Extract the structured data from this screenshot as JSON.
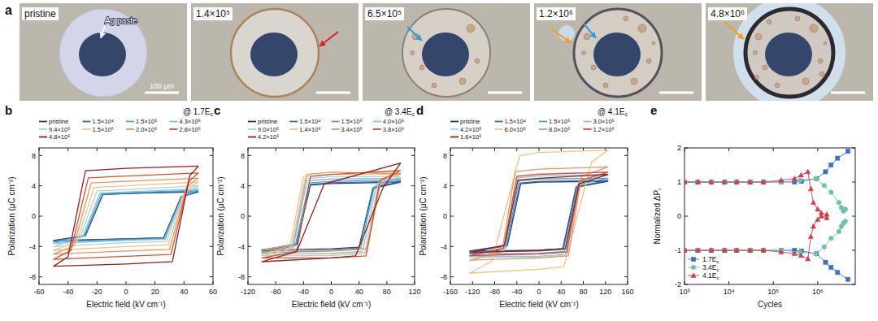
{
  "panel_a": {
    "label": "a",
    "images": [
      "pristine",
      "1.4×10⁵",
      "6.5×10⁵",
      "1.2×10⁶",
      "4.8×10⁶"
    ],
    "annotation": "Ag paste",
    "scale_bar": "100 μm"
  },
  "chart_data": [
    {
      "type": "line",
      "panel_label": "b",
      "annotation": "@ 1.7Ec",
      "x_label": "Electric field (kV cm⁻¹)",
      "y_label": "Polarization (μC cm⁻²)",
      "xlim": [
        -60,
        60
      ],
      "ylim": [
        -9,
        9
      ],
      "xticks": [
        -60,
        -40,
        -20,
        0,
        20,
        40,
        60
      ],
      "yticks": [
        -8,
        -4,
        0,
        4,
        8
      ],
      "legend": "top",
      "series": [
        {
          "name": "pristine",
          "color": "#1b3d7a",
          "x": [
            50,
            0,
            -16,
            -28,
            -50,
            0,
            26,
            38,
            50
          ],
          "values": [
            3.2,
            3.0,
            2.85,
            -2.55,
            -3.2,
            -3.0,
            -2.85,
            2.55,
            3.2
          ]
        },
        {
          "name": "1.5×10⁴",
          "color": "#2f6db5",
          "x": [
            50,
            0,
            -16,
            -28,
            -50,
            0,
            26,
            38,
            50
          ],
          "values": [
            3.3,
            3.0,
            2.85,
            -2.55,
            -3.3,
            -3.0,
            -2.85,
            2.55,
            3.3
          ]
        },
        {
          "name": "1.5×10⁵",
          "color": "#4fa3c7",
          "x": [
            50,
            0,
            -17,
            -29,
            -50,
            0,
            27,
            39,
            50
          ],
          "values": [
            3.4,
            3.1,
            2.95,
            -2.64,
            -3.4,
            -3.1,
            -2.95,
            2.64,
            3.4
          ]
        },
        {
          "name": "4.3×10⁵",
          "color": "#86c5d8",
          "x": [
            50,
            0,
            -18,
            -30,
            -50,
            0,
            27,
            39,
            50
          ],
          "values": [
            3.6,
            3.2,
            3.04,
            -2.72,
            -3.6,
            -3.2,
            -3.04,
            2.72,
            3.6
          ]
        },
        {
          "name": "9.4×10⁵",
          "color": "#a9d4de",
          "x": [
            50,
            0,
            -20,
            -32,
            -50,
            0,
            28,
            40,
            50
          ],
          "values": [
            4.0,
            3.5,
            3.33,
            -2.98,
            -4.0,
            -3.5,
            -3.33,
            2.98,
            4.0
          ]
        },
        {
          "name": "1.5×10⁶",
          "color": "#f5c27f",
          "x": [
            50,
            0,
            -22,
            -34,
            -50,
            0,
            29,
            41,
            50
          ],
          "values": [
            4.5,
            4.0,
            3.8,
            -3.4,
            -4.5,
            -4.0,
            -3.8,
            3.4,
            4.5
          ]
        },
        {
          "name": "2.0×10⁶",
          "color": "#f0935a",
          "x": [
            50,
            0,
            -24,
            -36,
            -50,
            0,
            30,
            42,
            50
          ],
          "values": [
            5.0,
            4.6,
            4.37,
            -3.91,
            -5.0,
            -4.6,
            -4.37,
            3.91,
            5.0
          ]
        },
        {
          "name": "2.8×10⁶",
          "color": "#d9502f",
          "x": [
            50,
            0,
            -26,
            -38,
            -50,
            0,
            31,
            43,
            50
          ],
          "values": [
            5.7,
            5.3,
            5.04,
            -4.51,
            -5.7,
            -5.3,
            -5.04,
            4.51,
            5.7
          ]
        },
        {
          "name": "4.8×10⁶",
          "color": "#9e1b1b",
          "x": [
            50,
            0,
            -28,
            -40,
            -50,
            0,
            32,
            44,
            50
          ],
          "values": [
            6.6,
            6.3,
            5.99,
            -5.36,
            -6.6,
            -6.3,
            -5.99,
            5.36,
            6.6
          ]
        }
      ]
    },
    {
      "type": "line",
      "panel_label": "c",
      "annotation": "@ 3.4Ec",
      "x_label": "Electric field (kV cm⁻¹)",
      "y_label": "Polarization (μC cm⁻²)",
      "xlim": [
        -120,
        120
      ],
      "ylim": [
        -9,
        9
      ],
      "xticks": [
        -120,
        -80,
        -40,
        0,
        40,
        80,
        120
      ],
      "yticks": [
        -8,
        -4,
        0,
        4,
        8
      ],
      "legend": "top",
      "series": [
        {
          "name": "pristine",
          "color": "#1b3d7a",
          "x": [
            100,
            0,
            -30,
            -50,
            -100,
            0,
            40,
            60,
            100
          ],
          "values": [
            4.5,
            4.3,
            4.09,
            -3.66,
            -4.5,
            -4.3,
            -4.09,
            3.66,
            4.5
          ]
        },
        {
          "name": "1.5×10⁴",
          "color": "#2f6db5",
          "x": [
            100,
            0,
            -30,
            -50,
            -100,
            0,
            40,
            60,
            100
          ],
          "values": [
            4.6,
            4.4,
            4.18,
            -3.74,
            -4.6,
            -4.4,
            -4.18,
            3.74,
            4.6
          ]
        },
        {
          "name": "1.5×10⁵",
          "color": "#4fa3c7",
          "x": [
            100,
            0,
            -32,
            -52,
            -100,
            0,
            42,
            62,
            100
          ],
          "values": [
            4.8,
            4.6,
            4.37,
            -3.91,
            -4.8,
            -4.6,
            -4.37,
            3.91,
            4.8
          ]
        },
        {
          "name": "4.0×10⁵",
          "color": "#86c5d8",
          "x": [
            100,
            0,
            -35,
            -55,
            -100,
            0,
            45,
            65,
            100
          ],
          "values": [
            5.0,
            4.9,
            4.66,
            -4.17,
            -5.0,
            -4.9,
            -4.66,
            4.17,
            5.0
          ]
        },
        {
          "name": "9.0×10⁵",
          "color": "#a9d4de",
          "x": [
            100,
            0,
            -38,
            -58,
            -100,
            0,
            48,
            68,
            100
          ],
          "values": [
            5.2,
            5.2,
            4.94,
            -4.42,
            -5.2,
            -5.2,
            -4.94,
            4.42,
            5.2
          ]
        },
        {
          "name": "1.4×10⁶",
          "color": "#f5c27f",
          "x": [
            100,
            0,
            -40,
            -60,
            -100,
            0,
            50,
            70,
            100
          ],
          "values": [
            5.5,
            5.5,
            5.23,
            -4.25,
            -5.0,
            -5.0,
            -4.75,
            4.68,
            5.5
          ]
        },
        {
          "name": "3.4×10⁶",
          "color": "#f0935a",
          "x": [
            100,
            0,
            -35,
            -55,
            -100,
            0,
            52,
            72,
            100
          ],
          "values": [
            5.6,
            5.8,
            5.51,
            -3.83,
            -4.4,
            -4.5,
            -4.28,
            4.93,
            5.6
          ]
        },
        {
          "name": "3.8×10⁶",
          "color": "#d9502f",
          "x": [
            100,
            0,
            -30,
            -50,
            -100,
            0,
            50,
            70,
            100
          ],
          "values": [
            6.0,
            5.5,
            5.23,
            -4.68,
            -5.5,
            -5.5,
            -5.23,
            4.68,
            6.0
          ]
        },
        {
          "name": "4.2×10⁶",
          "color": "#9e1b1b",
          "x": [
            100,
            0,
            -10,
            -50,
            -100,
            0,
            35,
            75,
            100
          ],
          "values": [
            7.0,
            4.5,
            4.28,
            -4.68,
            -6.0,
            -5.5,
            -5.23,
            3.83,
            7.0
          ]
        }
      ]
    },
    {
      "type": "line",
      "panel_label": "d",
      "annotation": "@ 4.1Ec",
      "x_label": "Electric field (kV cm⁻¹)",
      "y_label": "Polarization (μC cm⁻²)",
      "xlim": [
        -160,
        160
      ],
      "ylim": [
        -9,
        9
      ],
      "xticks": [
        -160,
        -120,
        -80,
        -40,
        0,
        40,
        80,
        120,
        160
      ],
      "yticks": [
        -8,
        -4,
        0,
        4,
        8
      ],
      "legend": "top",
      "series": [
        {
          "name": "pristine",
          "color": "#1b3d7a",
          "x": [
            125,
            0,
            -33,
            -57,
            -125,
            0,
            43,
            67,
            125
          ],
          "values": [
            4.6,
            4.5,
            4.28,
            -3.83,
            -4.6,
            -4.5,
            -4.28,
            3.83,
            4.6
          ]
        },
        {
          "name": "1.5×10⁴",
          "color": "#2f6db5",
          "x": [
            125,
            0,
            -34,
            -58,
            -125,
            0,
            44,
            68,
            125
          ],
          "values": [
            4.7,
            4.6,
            4.37,
            -3.91,
            -4.7,
            -4.6,
            -4.37,
            3.91,
            4.7
          ]
        },
        {
          "name": "1.5×10⁵",
          "color": "#4fa3c7",
          "x": [
            125,
            0,
            -36,
            -60,
            -125,
            0,
            46,
            70,
            125
          ],
          "values": [
            5.0,
            4.9,
            4.66,
            -4.17,
            -5.0,
            -4.9,
            -4.66,
            4.17,
            5.0
          ]
        },
        {
          "name": "3.0×10⁵",
          "color": "#86c5d8",
          "x": [
            125,
            0,
            -38,
            -62,
            -125,
            0,
            48,
            72,
            125
          ],
          "values": [
            5.5,
            5.3,
            5.04,
            -4.51,
            -5.3,
            -5.3,
            -5.04,
            4.51,
            5.5
          ]
        },
        {
          "name": "4.2×10⁵",
          "color": "#a9d4de",
          "x": [
            125,
            0,
            -40,
            -64,
            -125,
            0,
            50,
            74,
            125
          ],
          "values": [
            5.8,
            5.6,
            5.32,
            -4.59,
            -5.4,
            -5.4,
            -5.13,
            4.76,
            5.8
          ]
        },
        {
          "name": "6.0×10⁵",
          "color": "#f5c27f",
          "x": [
            125,
            0,
            -35,
            -85,
            -125,
            0,
            45,
            95,
            125
          ],
          "values": [
            8.7,
            8.4,
            7.98,
            -5.95,
            -7.5,
            -7.0,
            -6.65,
            7.14,
            8.7
          ]
        },
        {
          "name": "8.0×10⁵",
          "color": "#f0935a",
          "x": [
            125,
            0,
            -43,
            -67,
            -125,
            0,
            53,
            77,
            125
          ],
          "values": [
            6.5,
            6.2,
            5.89,
            -4.68,
            -5.8,
            -5.5,
            -5.23,
            5.27,
            6.5
          ]
        },
        {
          "name": "1.2×10⁶",
          "color": "#d9502f",
          "x": [
            125,
            0,
            -40,
            -64,
            -125,
            0,
            50,
            74,
            125
          ],
          "values": [
            5.8,
            5.5,
            5.23,
            -4.25,
            -5.2,
            -5.0,
            -4.75,
            4.68,
            5.8
          ]
        },
        {
          "name": "1.6×10⁶",
          "color": "#9e1b1b",
          "x": [
            125,
            0,
            -38,
            -62,
            -125,
            0,
            48,
            72,
            125
          ],
          "values": [
            5.5,
            5.0,
            4.75,
            -3.83,
            -4.8,
            -4.5,
            -4.28,
            4.25,
            5.5
          ]
        }
      ]
    },
    {
      "type": "scatter",
      "panel_label": "e",
      "x_label": "Cycles",
      "y_label": "Normalized ΔPr",
      "log": "x",
      "line_style": "solid",
      "xlim": [
        1000,
        7000000
      ],
      "ylim": [
        -2,
        2
      ],
      "xticks": [
        {
          "value": 1000,
          "label": "10³"
        },
        {
          "value": 10000,
          "label": "10⁴"
        },
        {
          "value": 100000,
          "label": "10⁵"
        },
        {
          "value": 1000000,
          "label": "10⁶"
        }
      ],
      "yticks": [
        -2,
        -1,
        0,
        1,
        2
      ],
      "legend": "lower left",
      "series": [
        {
          "name": "1.7Ec",
          "color": "#3a6fc4",
          "marker": "square",
          "x": [
            1000,
            2000,
            4000,
            8000,
            15000,
            30000,
            60000,
            150000,
            300000,
            430000,
            940000,
            1500000,
            2000000,
            2800000,
            4800000
          ],
          "values": [
            1,
            1,
            1,
            1,
            1,
            1,
            1,
            1,
            1,
            1.02,
            1.1,
            1.3,
            1.5,
            1.7,
            1.9
          ],
          "negative_values": [
            -1,
            -1,
            -1,
            -1,
            -1,
            -1,
            -1,
            -1,
            -1,
            -1.02,
            -1.1,
            -1.35,
            -1.5,
            -1.65,
            -1.85
          ]
        },
        {
          "name": "3.4Ec",
          "color": "#6cc4a4",
          "marker": "circle",
          "x": [
            1000,
            2000,
            4000,
            8000,
            15000,
            30000,
            60000,
            150000,
            400000,
            900000,
            1400000,
            2000000,
            3000000,
            3400000,
            3800000,
            4200000
          ],
          "values": [
            1,
            1,
            1,
            1,
            1,
            1,
            1,
            1,
            1.05,
            1.1,
            0.9,
            0.7,
            0.4,
            0.25,
            0.15,
            0.2
          ],
          "negative_values": [
            -1,
            -1,
            -1,
            -1,
            -1,
            -1,
            -1,
            -1,
            -1.05,
            -1.1,
            -0.9,
            -0.65,
            -0.45,
            -0.3,
            -0.2,
            -0.15
          ]
        },
        {
          "name": "4.1Ec",
          "color": "#d63a4a",
          "marker": "triangle",
          "x": [
            1000,
            2000,
            4000,
            8000,
            15000,
            30000,
            60000,
            150000,
            300000,
            420000,
            600000,
            700000,
            800000,
            1000000,
            1200000,
            1600000
          ],
          "values": [
            1,
            1,
            1,
            1,
            1,
            1,
            1,
            1.05,
            1.1,
            1.2,
            1.3,
            0.8,
            0.4,
            0.2,
            0.1,
            0.05
          ],
          "negative_values": [
            -1,
            -1,
            -1,
            -1,
            -1,
            -1,
            -1,
            -1.05,
            -1.1,
            -1.15,
            -1.25,
            -0.6,
            -0.3,
            -0.1,
            0,
            -0.05
          ]
        }
      ]
    }
  ]
}
